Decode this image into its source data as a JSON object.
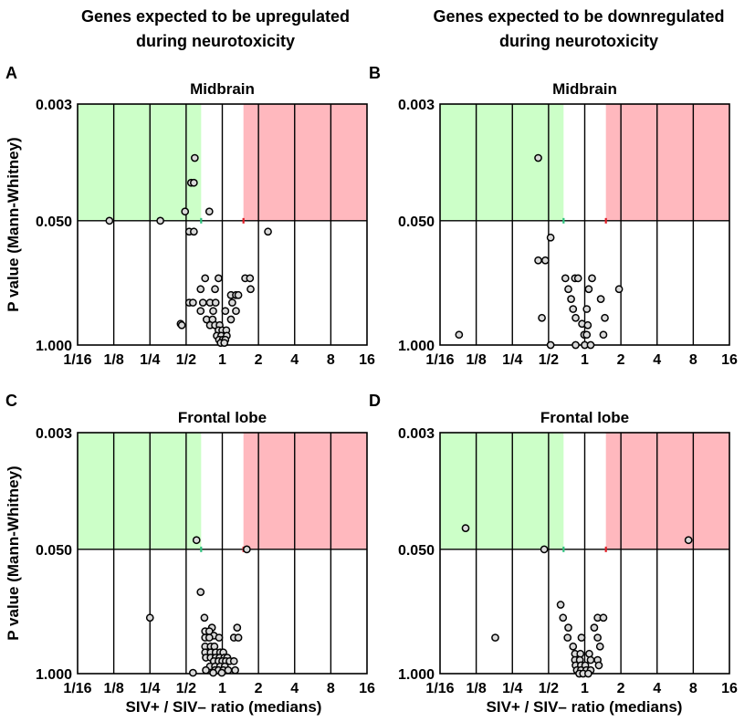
{
  "column_headers": {
    "left": [
      "Genes expected to be upregulated",
      "during neurotoxicity"
    ],
    "right": [
      "Genes expected to be downregulated",
      "during neurotoxicity"
    ]
  },
  "shared_axes": {
    "xlabel": "SIV+ / SIV– ratio (medians)",
    "ylabel": "P value (Mann-Whitney)",
    "x_tick_labels": [
      "1/16",
      "1/8",
      "1/4",
      "1/2",
      "1",
      "2",
      "4",
      "8",
      "16"
    ],
    "x_scale": "log2",
    "xlim": [
      0.0625,
      16
    ],
    "y_tick_labels": [
      "0.003",
      "0.050",
      "1.000"
    ],
    "y_scale": "log10",
    "ylim": [
      1.0,
      0.003
    ],
    "significance_threshold_p": 0.05,
    "fold_thresholds": [
      0.6667,
      1.5
    ]
  },
  "colors": {
    "down_region": "#ccffc8",
    "up_region": "#ffb8be",
    "low_marker": "#2ec27e",
    "high_marker": "#e01b24",
    "point_fill": "#d9d9d9",
    "point_stroke": "#000000"
  },
  "chart_data": [
    {
      "type": "scatter",
      "panel": "A",
      "title": "Midbrain",
      "points": [
        {
          "x": 0.115,
          "p": 0.05
        },
        {
          "x": 0.305,
          "p": 0.05
        },
        {
          "x": 0.59,
          "p": 0.011
        },
        {
          "x": 0.55,
          "p": 0.02
        },
        {
          "x": 0.58,
          "p": 0.02
        },
        {
          "x": 0.49,
          "p": 0.04
        },
        {
          "x": 0.78,
          "p": 0.04
        },
        {
          "x": 0.53,
          "p": 0.065
        },
        {
          "x": 0.58,
          "p": 0.065
        },
        {
          "x": 2.4,
          "p": 0.065
        },
        {
          "x": 0.72,
          "p": 0.2
        },
        {
          "x": 0.93,
          "p": 0.2
        },
        {
          "x": 1.55,
          "p": 0.2
        },
        {
          "x": 1.7,
          "p": 0.2
        },
        {
          "x": 0.66,
          "p": 0.26
        },
        {
          "x": 0.87,
          "p": 0.26
        },
        {
          "x": 1.72,
          "p": 0.26
        },
        {
          "x": 1.18,
          "p": 0.3
        },
        {
          "x": 1.3,
          "p": 0.3
        },
        {
          "x": 1.36,
          "p": 0.3
        },
        {
          "x": 0.53,
          "p": 0.36
        },
        {
          "x": 0.57,
          "p": 0.36
        },
        {
          "x": 0.69,
          "p": 0.36
        },
        {
          "x": 0.79,
          "p": 0.36
        },
        {
          "x": 0.88,
          "p": 0.36
        },
        {
          "x": 1.21,
          "p": 0.36
        },
        {
          "x": 0.66,
          "p": 0.44
        },
        {
          "x": 0.84,
          "p": 0.44
        },
        {
          "x": 1.06,
          "p": 0.44
        },
        {
          "x": 1.3,
          "p": 0.44
        },
        {
          "x": 0.74,
          "p": 0.54
        },
        {
          "x": 0.83,
          "p": 0.54
        },
        {
          "x": 1.18,
          "p": 0.54
        },
        {
          "x": 0.45,
          "p": 0.6
        },
        {
          "x": 0.46,
          "p": 0.62
        },
        {
          "x": 0.79,
          "p": 0.62
        },
        {
          "x": 0.87,
          "p": 0.62
        },
        {
          "x": 0.95,
          "p": 0.62
        },
        {
          "x": 0.93,
          "p": 0.7
        },
        {
          "x": 1.0,
          "p": 0.7
        },
        {
          "x": 1.08,
          "p": 0.7
        },
        {
          "x": 0.9,
          "p": 0.8
        },
        {
          "x": 0.98,
          "p": 0.8
        },
        {
          "x": 1.09,
          "p": 0.8
        },
        {
          "x": 0.94,
          "p": 0.88
        },
        {
          "x": 1.01,
          "p": 0.88
        },
        {
          "x": 1.06,
          "p": 0.88
        },
        {
          "x": 0.97,
          "p": 0.95
        },
        {
          "x": 1.04,
          "p": 0.95
        }
      ]
    },
    {
      "type": "scatter",
      "panel": "B",
      "title": "Midbrain",
      "points": [
        {
          "x": 0.41,
          "p": 0.011
        },
        {
          "x": 0.52,
          "p": 0.075
        },
        {
          "x": 0.41,
          "p": 0.13
        },
        {
          "x": 0.47,
          "p": 0.13
        },
        {
          "x": 0.69,
          "p": 0.2
        },
        {
          "x": 0.83,
          "p": 0.2
        },
        {
          "x": 0.88,
          "p": 0.2
        },
        {
          "x": 1.15,
          "p": 0.2
        },
        {
          "x": 0.73,
          "p": 0.26
        },
        {
          "x": 1.08,
          "p": 0.26
        },
        {
          "x": 1.93,
          "p": 0.26
        },
        {
          "x": 0.77,
          "p": 0.33
        },
        {
          "x": 1.36,
          "p": 0.33
        },
        {
          "x": 0.8,
          "p": 0.42
        },
        {
          "x": 1.04,
          "p": 0.42
        },
        {
          "x": 0.44,
          "p": 0.52
        },
        {
          "x": 0.84,
          "p": 0.52
        },
        {
          "x": 1.47,
          "p": 0.52
        },
        {
          "x": 0.95,
          "p": 0.6
        },
        {
          "x": 1.06,
          "p": 0.62
        },
        {
          "x": 0.09,
          "p": 0.78
        },
        {
          "x": 0.99,
          "p": 0.78
        },
        {
          "x": 1.04,
          "p": 0.78
        },
        {
          "x": 1.43,
          "p": 0.78
        },
        {
          "x": 0.52,
          "p": 1.0
        },
        {
          "x": 0.84,
          "p": 1.0
        },
        {
          "x": 1.0,
          "p": 1.0
        },
        {
          "x": 1.12,
          "p": 1.0
        }
      ]
    },
    {
      "type": "scatter",
      "panel": "C",
      "title": "Frontal lobe",
      "points": [
        {
          "x": 0.61,
          "p": 0.04
        },
        {
          "x": 1.6,
          "p": 0.05
        },
        {
          "x": 0.66,
          "p": 0.14
        },
        {
          "x": 0.25,
          "p": 0.26
        },
        {
          "x": 0.71,
          "p": 0.26
        },
        {
          "x": 0.82,
          "p": 0.33
        },
        {
          "x": 1.33,
          "p": 0.33
        },
        {
          "x": 0.72,
          "p": 0.36
        },
        {
          "x": 0.78,
          "p": 0.36
        },
        {
          "x": 0.85,
          "p": 0.4
        },
        {
          "x": 0.72,
          "p": 0.42
        },
        {
          "x": 0.78,
          "p": 0.42
        },
        {
          "x": 0.94,
          "p": 0.42
        },
        {
          "x": 1.25,
          "p": 0.42
        },
        {
          "x": 1.36,
          "p": 0.42
        },
        {
          "x": 0.72,
          "p": 0.52
        },
        {
          "x": 0.8,
          "p": 0.52
        },
        {
          "x": 0.86,
          "p": 0.52
        },
        {
          "x": 0.72,
          "p": 0.6
        },
        {
          "x": 0.8,
          "p": 0.6
        },
        {
          "x": 0.88,
          "p": 0.6
        },
        {
          "x": 0.96,
          "p": 0.6
        },
        {
          "x": 1.02,
          "p": 0.6
        },
        {
          "x": 0.73,
          "p": 0.68
        },
        {
          "x": 0.8,
          "p": 0.68
        },
        {
          "x": 0.88,
          "p": 0.68
        },
        {
          "x": 0.95,
          "p": 0.68
        },
        {
          "x": 1.04,
          "p": 0.68
        },
        {
          "x": 1.1,
          "p": 0.68
        },
        {
          "x": 0.85,
          "p": 0.74
        },
        {
          "x": 0.93,
          "p": 0.74
        },
        {
          "x": 1.0,
          "p": 0.74
        },
        {
          "x": 1.07,
          "p": 0.74
        },
        {
          "x": 1.15,
          "p": 0.74
        },
        {
          "x": 1.25,
          "p": 0.74
        },
        {
          "x": 0.79,
          "p": 0.84
        },
        {
          "x": 0.87,
          "p": 0.84
        },
        {
          "x": 0.96,
          "p": 0.84
        },
        {
          "x": 1.05,
          "p": 0.84
        },
        {
          "x": 0.73,
          "p": 0.92
        },
        {
          "x": 0.87,
          "p": 0.92
        },
        {
          "x": 0.93,
          "p": 0.92
        },
        {
          "x": 1.02,
          "p": 0.92
        },
        {
          "x": 1.12,
          "p": 0.92
        },
        {
          "x": 1.28,
          "p": 0.92
        },
        {
          "x": 0.57,
          "p": 0.98
        },
        {
          "x": 0.84,
          "p": 0.98
        },
        {
          "x": 0.99,
          "p": 0.98
        }
      ]
    },
    {
      "type": "scatter",
      "panel": "D",
      "title": "Frontal lobe",
      "points": [
        {
          "x": 0.102,
          "p": 0.03
        },
        {
          "x": 7.3,
          "p": 0.04
        },
        {
          "x": 0.46,
          "p": 0.05
        },
        {
          "x": 0.63,
          "p": 0.19
        },
        {
          "x": 0.66,
          "p": 0.26
        },
        {
          "x": 1.28,
          "p": 0.26
        },
        {
          "x": 1.43,
          "p": 0.26
        },
        {
          "x": 0.73,
          "p": 0.33
        },
        {
          "x": 1.2,
          "p": 0.33
        },
        {
          "x": 0.18,
          "p": 0.42
        },
        {
          "x": 0.72,
          "p": 0.42
        },
        {
          "x": 0.94,
          "p": 0.42
        },
        {
          "x": 1.28,
          "p": 0.42
        },
        {
          "x": 0.8,
          "p": 0.52
        },
        {
          "x": 1.34,
          "p": 0.52
        },
        {
          "x": 0.83,
          "p": 0.62
        },
        {
          "x": 0.92,
          "p": 0.62
        },
        {
          "x": 1.09,
          "p": 0.62
        },
        {
          "x": 0.83,
          "p": 0.72
        },
        {
          "x": 0.91,
          "p": 0.72
        },
        {
          "x": 1.12,
          "p": 0.72
        },
        {
          "x": 1.28,
          "p": 0.72
        },
        {
          "x": 0.84,
          "p": 0.82
        },
        {
          "x": 0.93,
          "p": 0.82
        },
        {
          "x": 1.01,
          "p": 0.82
        },
        {
          "x": 1.31,
          "p": 0.82
        },
        {
          "x": 0.86,
          "p": 0.92
        },
        {
          "x": 0.93,
          "p": 0.92
        },
        {
          "x": 1.03,
          "p": 0.92
        },
        {
          "x": 1.12,
          "p": 0.92
        },
        {
          "x": 0.9,
          "p": 1.0
        },
        {
          "x": 0.97,
          "p": 1.0
        },
        {
          "x": 1.07,
          "p": 1.0
        }
      ]
    }
  ]
}
